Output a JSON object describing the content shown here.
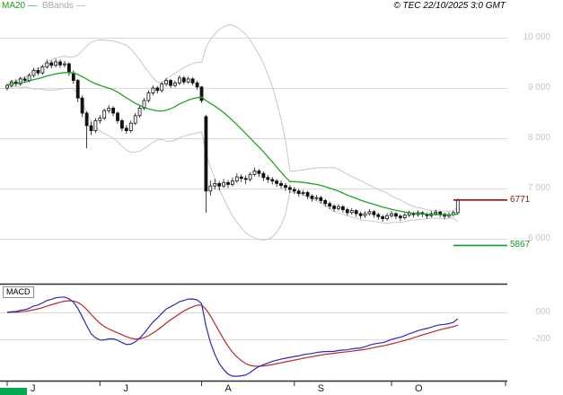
{
  "header": {
    "legend": [
      {
        "label": "MA20",
        "color": "#1CA01C"
      },
      {
        "label": "BBands",
        "color": "#AAAAAA"
      }
    ],
    "separator": "—",
    "copyright": "© TEC 22/10/2025 3:0 GMT"
  },
  "price_axis": {
    "color": "#C6C6C6",
    "labels": [
      {
        "text": "10 000",
        "value": 10000
      },
      {
        "text": "9 000",
        "value": 9000
      },
      {
        "text": "8 000",
        "value": 8000
      },
      {
        "text": "7 000",
        "value": 7000
      },
      {
        "text": "6 000",
        "value": 6000
      }
    ]
  },
  "levels": [
    {
      "label": "6771",
      "value": 6771,
      "color": "#8B1414"
    },
    {
      "label": "5867",
      "value": 5867,
      "color": "#0E9B30"
    }
  ],
  "macd_panel": {
    "label": "MACD",
    "axis_labels": [
      {
        "text": "000",
        "value": 0
      },
      {
        "text": "-200",
        "value": -200
      }
    ],
    "line_colors": {
      "macd": "#2A2AB8",
      "signal": "#B82A2A"
    }
  },
  "x_axis": {
    "months": [
      {
        "label": "J",
        "start_index": 0
      },
      {
        "label": "J",
        "start_index": 21
      },
      {
        "label": "A",
        "start_index": 44
      },
      {
        "label": "S",
        "start_index": 65
      },
      {
        "label": "O",
        "start_index": 87
      }
    ]
  },
  "scrollbar": {
    "color": "#00A94F"
  },
  "chart_data": {
    "type": "candlestick",
    "title": "",
    "x_labels": [
      "J",
      "J",
      "A",
      "S",
      "O"
    ],
    "price_ylim": [
      5600,
      10140
    ],
    "gridlines": [
      10000,
      9000,
      8000,
      7000,
      6000
    ],
    "overlays": [
      "MA20",
      "Bollinger Bands (20,2)"
    ],
    "levels": [
      6771,
      5867
    ],
    "candle_color": "#111111",
    "up_fill": "#ffffff",
    "ma_color": "#23A228",
    "band_color": "#C8C8C8",
    "candles": [
      [
        9000,
        9090,
        8950,
        9050
      ],
      [
        9050,
        9160,
        9010,
        9120
      ],
      [
        9120,
        9170,
        9030,
        9080
      ],
      [
        9080,
        9220,
        9040,
        9180
      ],
      [
        9180,
        9230,
        9100,
        9150
      ],
      [
        9150,
        9290,
        9110,
        9250
      ],
      [
        9250,
        9400,
        9210,
        9350
      ],
      [
        9350,
        9410,
        9250,
        9300
      ],
      [
        9300,
        9460,
        9260,
        9420
      ],
      [
        9420,
        9560,
        9380,
        9500
      ],
      [
        9500,
        9550,
        9390,
        9450
      ],
      [
        9450,
        9580,
        9410,
        9520
      ],
      [
        9520,
        9570,
        9400,
        9460
      ],
      [
        9460,
        9540,
        9410,
        9480
      ],
      [
        9480,
        9510,
        9240,
        9300
      ],
      [
        9300,
        9350,
        9080,
        9150
      ],
      [
        9150,
        9180,
        8720,
        8800
      ],
      [
        8800,
        8850,
        8420,
        8500
      ],
      [
        8500,
        8540,
        7800,
        8250
      ],
      [
        8250,
        8330,
        8060,
        8150
      ],
      [
        8150,
        8400,
        8100,
        8350
      ],
      [
        8350,
        8460,
        8290,
        8400
      ],
      [
        8400,
        8590,
        8360,
        8550
      ],
      [
        8550,
        8660,
        8500,
        8600
      ],
      [
        8600,
        8640,
        8440,
        8500
      ],
      [
        8500,
        8530,
        8290,
        8350
      ],
      [
        8350,
        8390,
        8140,
        8200
      ],
      [
        8200,
        8260,
        8090,
        8150
      ],
      [
        8150,
        8350,
        8110,
        8300
      ],
      [
        8300,
        8500,
        8260,
        8450
      ],
      [
        8450,
        8650,
        8410,
        8600
      ],
      [
        8600,
        8800,
        8560,
        8750
      ],
      [
        8750,
        8950,
        8710,
        8900
      ],
      [
        8900,
        9050,
        8850,
        9000
      ],
      [
        9000,
        9040,
        8890,
        8950
      ],
      [
        8950,
        9120,
        8910,
        9080
      ],
      [
        9080,
        9200,
        9030,
        9150
      ],
      [
        9150,
        9180,
        9000,
        9050
      ],
      [
        9050,
        9150,
        9010,
        9100
      ],
      [
        9100,
        9250,
        9060,
        9200
      ],
      [
        9200,
        9240,
        9070,
        9120
      ],
      [
        9120,
        9230,
        9080,
        9180
      ],
      [
        9180,
        9210,
        9050,
        9100
      ],
      [
        9100,
        9140,
        8970,
        9020
      ],
      [
        9020,
        9040,
        8700,
        8750
      ],
      [
        8430,
        8470,
        6520,
        6950
      ],
      [
        6950,
        7160,
        6860,
        7050
      ],
      [
        7050,
        7190,
        6980,
        7100
      ],
      [
        7100,
        7150,
        6960,
        7050
      ],
      [
        7050,
        7190,
        7010,
        7120
      ],
      [
        7120,
        7170,
        7010,
        7080
      ],
      [
        7080,
        7220,
        7040,
        7150
      ],
      [
        7150,
        7300,
        7110,
        7230
      ],
      [
        7230,
        7280,
        7130,
        7200
      ],
      [
        7200,
        7260,
        7090,
        7180
      ],
      [
        7180,
        7330,
        7140,
        7280
      ],
      [
        7280,
        7420,
        7240,
        7350
      ],
      [
        7350,
        7390,
        7230,
        7300
      ],
      [
        7300,
        7340,
        7150,
        7220
      ],
      [
        7220,
        7270,
        7110,
        7180
      ],
      [
        7180,
        7230,
        7080,
        7150
      ],
      [
        7150,
        7190,
        7030,
        7100
      ],
      [
        7100,
        7160,
        7000,
        7060
      ],
      [
        7060,
        7110,
        6950,
        7020
      ],
      [
        7020,
        7070,
        6910,
        6980
      ],
      [
        6980,
        7030,
        6890,
        6950
      ],
      [
        6950,
        6990,
        6840,
        6900
      ],
      [
        6900,
        6970,
        6860,
        6920
      ],
      [
        6920,
        6950,
        6790,
        6850
      ],
      [
        6850,
        6890,
        6740,
        6800
      ],
      [
        6800,
        6870,
        6760,
        6820
      ],
      [
        6820,
        6850,
        6700,
        6760
      ],
      [
        6760,
        6800,
        6640,
        6700
      ],
      [
        6700,
        6740,
        6590,
        6650
      ],
      [
        6650,
        6690,
        6540,
        6600
      ],
      [
        6600,
        6690,
        6560,
        6640
      ],
      [
        6640,
        6670,
        6520,
        6580
      ],
      [
        6580,
        6620,
        6460,
        6520
      ],
      [
        6520,
        6610,
        6480,
        6560
      ],
      [
        6560,
        6590,
        6440,
        6500
      ],
      [
        6500,
        6540,
        6400,
        6460
      ],
      [
        6460,
        6550,
        6420,
        6500
      ],
      [
        6500,
        6590,
        6460,
        6540
      ],
      [
        6540,
        6570,
        6420,
        6480
      ],
      [
        6480,
        6520,
        6380,
        6440
      ],
      [
        6440,
        6480,
        6340,
        6400
      ],
      [
        6400,
        6510,
        6360,
        6460
      ],
      [
        6460,
        6550,
        6420,
        6500
      ],
      [
        6500,
        6530,
        6390,
        6450
      ],
      [
        6450,
        6490,
        6350,
        6420
      ],
      [
        6420,
        6510,
        6380,
        6470
      ],
      [
        6470,
        6560,
        6430,
        6510
      ],
      [
        6510,
        6540,
        6420,
        6480
      ],
      [
        6480,
        6570,
        6440,
        6520
      ],
      [
        6520,
        6550,
        6430,
        6490
      ],
      [
        6490,
        6520,
        6400,
        6460
      ],
      [
        6460,
        6550,
        6420,
        6500
      ],
      [
        6500,
        6580,
        6460,
        6530
      ],
      [
        6530,
        6560,
        6430,
        6490
      ],
      [
        6490,
        6520,
        6390,
        6450
      ],
      [
        6450,
        6530,
        6410,
        6480
      ],
      [
        6480,
        6560,
        6440,
        6520
      ],
      [
        6520,
        6800,
        6480,
        6771
      ]
    ],
    "macd": {
      "type": "line",
      "fast": 12,
      "slow": 26,
      "signal_period": 9,
      "gridlines": [
        0,
        -200
      ],
      "ylim": [
        -520,
        210
      ]
    }
  }
}
